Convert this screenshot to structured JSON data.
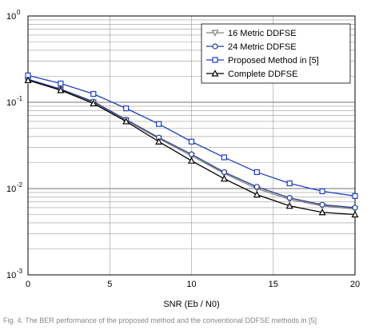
{
  "chart_data": {
    "type": "line",
    "xlabel": "SNR (Eb / N0)",
    "ylabel": "",
    "title": "",
    "xlim": [
      0,
      20
    ],
    "ylim": [
      0.001,
      1
    ],
    "y_scale": "log",
    "x_ticks": [
      0,
      5,
      10,
      15,
      20
    ],
    "y_ticks": [
      {
        "base": "10",
        "exp": "0",
        "value": 1
      },
      {
        "base": "10",
        "exp": "-1",
        "value": 0.1
      },
      {
        "base": "10",
        "exp": "-2",
        "value": 0.01
      },
      {
        "base": "10",
        "exp": "-3",
        "value": 0.001
      }
    ],
    "grid": true,
    "legend_position": "top-right",
    "x": [
      0,
      2,
      4,
      6,
      8,
      10,
      12,
      14,
      16,
      18,
      20
    ],
    "series": [
      {
        "name": "16 Metric DDFSE",
        "marker": "triangle-down",
        "color": "#808080",
        "values": [
          0.18,
          0.14,
          0.1,
          0.062,
          0.038,
          0.024,
          0.015,
          0.01,
          0.0075,
          0.0063,
          0.0058
        ]
      },
      {
        "name": "24 Metric DDFSE",
        "marker": "circle",
        "color": "#2a3d8f",
        "values": [
          0.185,
          0.142,
          0.102,
          0.063,
          0.039,
          0.025,
          0.0155,
          0.0105,
          0.0078,
          0.0065,
          0.006
        ]
      },
      {
        "name": "Proposed Method in [5]",
        "marker": "square",
        "color": "#1f3fc0",
        "values": [
          0.205,
          0.165,
          0.125,
          0.085,
          0.056,
          0.035,
          0.023,
          0.0155,
          0.0115,
          0.0093,
          0.0082
        ]
      },
      {
        "name": "Complete DDFSE",
        "marker": "triangle-up",
        "color": "#000000",
        "values": [
          0.18,
          0.138,
          0.097,
          0.06,
          0.035,
          0.021,
          0.013,
          0.0085,
          0.0063,
          0.0053,
          0.005
        ]
      }
    ]
  },
  "caption": "Fig. 4. The BER performance of the proposed method and the conventional DDFSE methods in [5]"
}
